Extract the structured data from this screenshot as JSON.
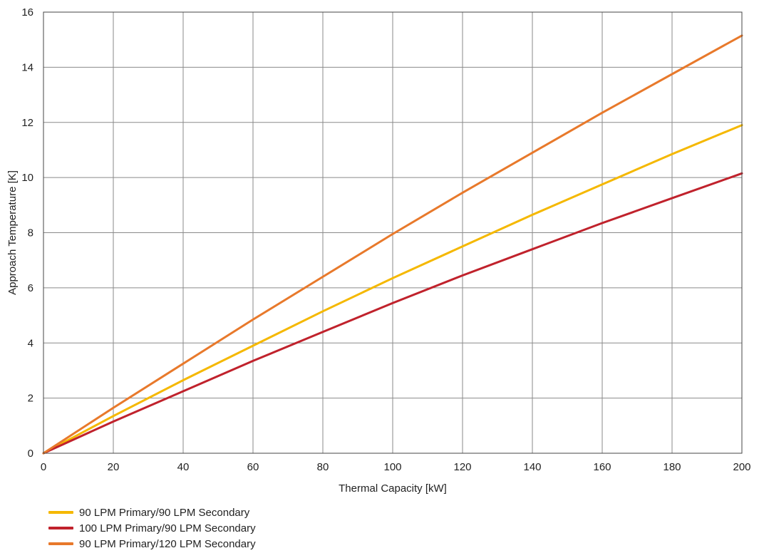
{
  "chart_data": {
    "type": "line",
    "xlabel": "Thermal Capacity [kW]",
    "ylabel": "Approach Temperature [K]",
    "xlim": [
      0,
      200
    ],
    "ylim": [
      0,
      16
    ],
    "xticks": [
      0,
      20,
      40,
      60,
      80,
      100,
      120,
      140,
      160,
      180,
      200
    ],
    "yticks": [
      0,
      2,
      4,
      6,
      8,
      10,
      12,
      14,
      16
    ],
    "grid": true,
    "legend_position": "bottom-left",
    "series": [
      {
        "name": "90 LPM Primary/90 LPM Secondary",
        "color": "#F5B800",
        "x": [
          0,
          20,
          40,
          60,
          80,
          100,
          120,
          140,
          160,
          180,
          200
        ],
        "y": [
          0,
          1.35,
          2.65,
          3.9,
          5.15,
          6.35,
          7.5,
          8.65,
          9.75,
          10.85,
          11.9
        ]
      },
      {
        "name": "100 LPM Primary/90 LPM Secondary",
        "color": "#C0222C",
        "x": [
          0,
          20,
          40,
          60,
          80,
          100,
          120,
          140,
          160,
          180,
          200
        ],
        "y": [
          0,
          1.15,
          2.25,
          3.35,
          4.4,
          5.45,
          6.45,
          7.4,
          8.35,
          9.25,
          10.15
        ]
      },
      {
        "name": "90 LPM Primary/120 LPM Secondary",
        "color": "#E8792B",
        "x": [
          0,
          20,
          40,
          60,
          80,
          100,
          120,
          140,
          160,
          180,
          200
        ],
        "y": [
          0,
          1.65,
          3.25,
          4.85,
          6.4,
          7.95,
          9.45,
          10.9,
          12.35,
          13.75,
          15.15
        ]
      }
    ]
  }
}
